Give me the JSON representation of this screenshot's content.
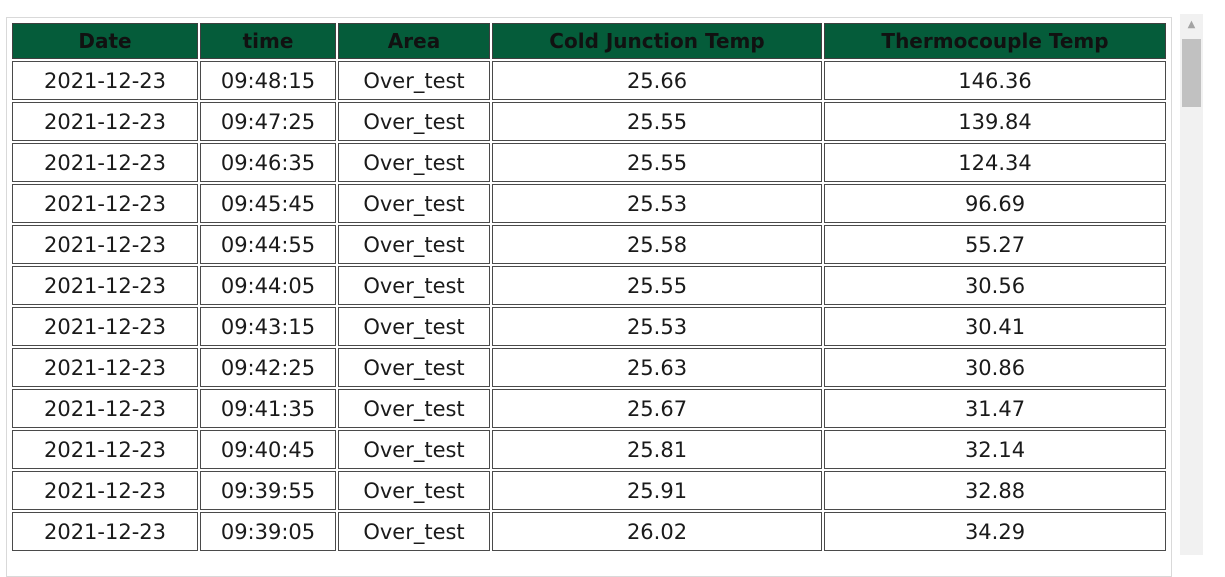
{
  "colors": {
    "header_bg": "#055c3a",
    "header_text": "#111111",
    "cell_border": "#4a4a4a",
    "scrollbar_track": "#f1f1f1",
    "scrollbar_thumb": "#c1c1c1"
  },
  "table": {
    "columns": [
      "Date",
      "time",
      "Area",
      "Cold Junction Temp",
      "Thermocouple Temp"
    ],
    "rows": [
      [
        "2021-12-23",
        "09:48:15",
        "Over_test",
        "25.66",
        "146.36"
      ],
      [
        "2021-12-23",
        "09:47:25",
        "Over_test",
        "25.55",
        "139.84"
      ],
      [
        "2021-12-23",
        "09:46:35",
        "Over_test",
        "25.55",
        "124.34"
      ],
      [
        "2021-12-23",
        "09:45:45",
        "Over_test",
        "25.53",
        "96.69"
      ],
      [
        "2021-12-23",
        "09:44:55",
        "Over_test",
        "25.58",
        "55.27"
      ],
      [
        "2021-12-23",
        "09:44:05",
        "Over_test",
        "25.55",
        "30.56"
      ],
      [
        "2021-12-23",
        "09:43:15",
        "Over_test",
        "25.53",
        "30.41"
      ],
      [
        "2021-12-23",
        "09:42:25",
        "Over_test",
        "25.63",
        "30.86"
      ],
      [
        "2021-12-23",
        "09:41:35",
        "Over_test",
        "25.67",
        "31.47"
      ],
      [
        "2021-12-23",
        "09:40:45",
        "Over_test",
        "25.81",
        "32.14"
      ],
      [
        "2021-12-23",
        "09:39:55",
        "Over_test",
        "25.91",
        "32.88"
      ],
      [
        "2021-12-23",
        "09:39:05",
        "Over_test",
        "26.02",
        "34.29"
      ]
    ]
  },
  "scrollbar": {
    "up_arrow_icon": "triangle-up-icon",
    "up_arrow_glyph": "▲"
  }
}
